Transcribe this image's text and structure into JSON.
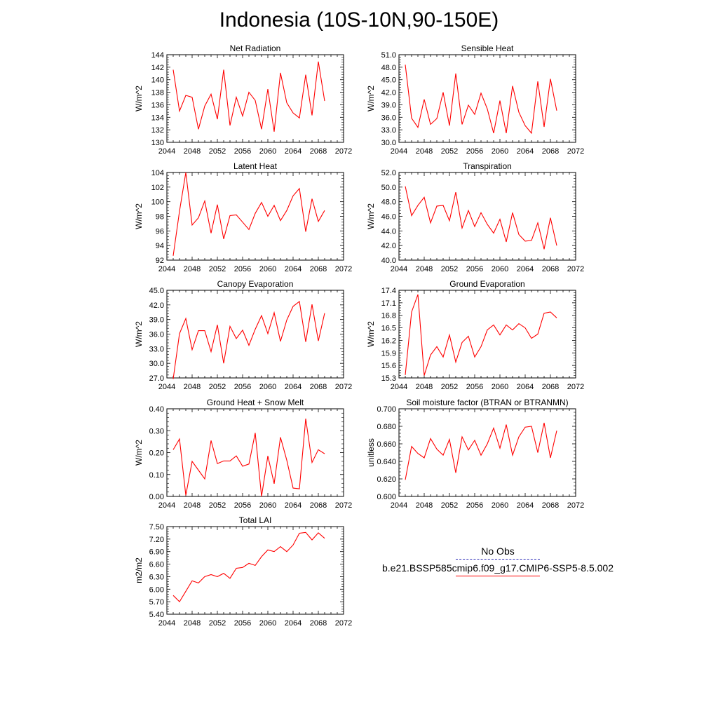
{
  "title": "Indonesia (10S-10N,90-150E)",
  "legend": {
    "obs_label": "No Obs",
    "model_label": "b.e21.BSSP585cmip6.f09_g17.CMIP6-SSP5-8.5.002",
    "model_color": "#ff0000",
    "obs_color": "#2a2ab8"
  },
  "chart_data": [
    {
      "type": "line",
      "title": "Net Radiation",
      "ylabel": "W/m^2",
      "xlim": [
        2044,
        2072
      ],
      "xticks": [
        2044,
        2048,
        2052,
        2056,
        2060,
        2064,
        2068,
        2072
      ],
      "ylim": [
        130,
        144
      ],
      "yticks": [
        "130",
        "132",
        "134",
        "136",
        "138",
        "140",
        "142",
        "144"
      ],
      "x": [
        2045,
        2046,
        2047,
        2048,
        2049,
        2050,
        2051,
        2052,
        2053,
        2054,
        2055,
        2056,
        2057,
        2058,
        2059,
        2060,
        2061,
        2062,
        2063,
        2064,
        2065,
        2066,
        2067,
        2068,
        2069
      ],
      "values": [
        141.6,
        135.0,
        137.5,
        137.2,
        132.1,
        135.8,
        137.7,
        133.7,
        141.6,
        132.7,
        137.2,
        134.2,
        138.0,
        136.7,
        132.1,
        138.5,
        131.7,
        141.1,
        136.3,
        134.7,
        133.9,
        140.8,
        134.3,
        142.9,
        136.6
      ]
    },
    {
      "type": "line",
      "title": "Sensible Heat",
      "ylabel": "W/m^2",
      "xlim": [
        2044,
        2072
      ],
      "xticks": [
        2044,
        2048,
        2052,
        2056,
        2060,
        2064,
        2068,
        2072
      ],
      "ylim": [
        30,
        51
      ],
      "yticks": [
        "30.0",
        "33.0",
        "36.0",
        "39.0",
        "42.0",
        "45.0",
        "48.0",
        "51.0"
      ],
      "x": [
        2045,
        2046,
        2047,
        2048,
        2049,
        2050,
        2051,
        2052,
        2053,
        2054,
        2055,
        2056,
        2057,
        2058,
        2059,
        2060,
        2061,
        2062,
        2063,
        2064,
        2065,
        2066,
        2067,
        2068,
        2069
      ],
      "values": [
        48.6,
        35.8,
        33.6,
        40.3,
        34.3,
        35.7,
        42.0,
        34.0,
        46.5,
        34.3,
        38.9,
        36.7,
        41.8,
        38.0,
        32.2,
        40.0,
        32.2,
        43.5,
        37.2,
        34.0,
        32.2,
        44.6,
        33.7,
        45.2,
        37.6
      ]
    },
    {
      "type": "line",
      "title": "Latent Heat",
      "ylabel": "W/m^2",
      "xlim": [
        2044,
        2072
      ],
      "xticks": [
        2044,
        2048,
        2052,
        2056,
        2060,
        2064,
        2068,
        2072
      ],
      "ylim": [
        92,
        104
      ],
      "yticks": [
        "92",
        "94",
        "96",
        "98",
        "100",
        "102",
        "104"
      ],
      "x": [
        2045,
        2046,
        2047,
        2048,
        2049,
        2050,
        2051,
        2052,
        2053,
        2054,
        2055,
        2056,
        2057,
        2058,
        2059,
        2060,
        2061,
        2062,
        2063,
        2064,
        2065,
        2066,
        2067,
        2068,
        2069
      ],
      "values": [
        92.6,
        98.7,
        104.0,
        96.8,
        97.8,
        100.1,
        95.7,
        99.6,
        94.9,
        98.1,
        98.2,
        97.2,
        96.2,
        98.4,
        99.9,
        98.0,
        99.5,
        97.4,
        98.8,
        100.8,
        101.8,
        95.9,
        100.4,
        97.3,
        98.8
      ]
    },
    {
      "type": "line",
      "title": "Transpiration",
      "ylabel": "W/m^2",
      "xlim": [
        2044,
        2072
      ],
      "xticks": [
        2044,
        2048,
        2052,
        2056,
        2060,
        2064,
        2068,
        2072
      ],
      "ylim": [
        40,
        52
      ],
      "yticks": [
        "40.0",
        "42.0",
        "44.0",
        "46.0",
        "48.0",
        "50.0",
        "52.0"
      ],
      "x": [
        2045,
        2046,
        2047,
        2048,
        2049,
        2050,
        2051,
        2052,
        2053,
        2054,
        2055,
        2056,
        2057,
        2058,
        2059,
        2060,
        2061,
        2062,
        2063,
        2064,
        2065,
        2066,
        2067,
        2068,
        2069
      ],
      "values": [
        50.1,
        46.1,
        47.5,
        48.6,
        45.1,
        47.4,
        47.5,
        45.4,
        49.3,
        44.4,
        46.8,
        44.6,
        46.5,
        44.9,
        43.7,
        45.6,
        42.5,
        46.5,
        43.5,
        42.6,
        42.7,
        45.1,
        41.5,
        45.8,
        42.0
      ]
    },
    {
      "type": "line",
      "title": "Canopy Evaporation",
      "ylabel": "W/m^2",
      "xlim": [
        2044,
        2072
      ],
      "xticks": [
        2044,
        2048,
        2052,
        2056,
        2060,
        2064,
        2068,
        2072
      ],
      "ylim": [
        27,
        45
      ],
      "yticks": [
        "27.0",
        "30.0",
        "33.0",
        "36.0",
        "39.0",
        "42.0",
        "45.0"
      ],
      "x": [
        2045,
        2046,
        2047,
        2048,
        2049,
        2050,
        2051,
        2052,
        2053,
        2054,
        2055,
        2056,
        2057,
        2058,
        2059,
        2060,
        2061,
        2062,
        2063,
        2064,
        2065,
        2066,
        2067,
        2068,
        2069
      ],
      "values": [
        26.8,
        36.1,
        39.2,
        32.8,
        36.7,
        36.7,
        32.4,
        37.9,
        30.0,
        37.6,
        35.1,
        36.8,
        33.7,
        37.0,
        39.8,
        36.1,
        40.4,
        34.5,
        38.9,
        41.7,
        42.7,
        34.4,
        42.1,
        34.6,
        40.3
      ]
    },
    {
      "type": "line",
      "title": "Ground Evaporation",
      "ylabel": "W/m^2",
      "xlim": [
        2044,
        2072
      ],
      "xticks": [
        2044,
        2048,
        2052,
        2056,
        2060,
        2064,
        2068,
        2072
      ],
      "ylim": [
        15.3,
        17.4
      ],
      "yticks": [
        "15.3",
        "15.6",
        "15.9",
        "16.2",
        "16.5",
        "16.8",
        "17.1",
        "17.4"
      ],
      "x": [
        2045,
        2046,
        2047,
        2048,
        2049,
        2050,
        2051,
        2052,
        2053,
        2054,
        2055,
        2056,
        2057,
        2058,
        2059,
        2060,
        2061,
        2062,
        2063,
        2064,
        2065,
        2066,
        2067,
        2068,
        2069
      ],
      "values": [
        15.37,
        16.88,
        17.3,
        15.36,
        15.85,
        16.05,
        15.8,
        16.33,
        15.68,
        16.15,
        16.3,
        15.8,
        16.05,
        16.45,
        16.57,
        16.33,
        16.57,
        16.45,
        16.6,
        16.5,
        16.25,
        16.35,
        16.85,
        16.88,
        16.74
      ]
    },
    {
      "type": "line",
      "title": "Ground Heat + Snow Melt",
      "ylabel": "W/m^2",
      "xlim": [
        2044,
        2072
      ],
      "xticks": [
        2044,
        2048,
        2052,
        2056,
        2060,
        2064,
        2068,
        2072
      ],
      "ylim": [
        0,
        0.4
      ],
      "yticks": [
        "0.00",
        "0.10",
        "0.20",
        "0.30",
        "0.40"
      ],
      "x": [
        2045,
        2046,
        2047,
        2048,
        2049,
        2050,
        2051,
        2052,
        2053,
        2054,
        2055,
        2056,
        2057,
        2058,
        2059,
        2060,
        2061,
        2062,
        2063,
        2064,
        2065,
        2066,
        2067,
        2068,
        2069
      ],
      "values": [
        0.213,
        0.262,
        0.005,
        0.16,
        0.12,
        0.08,
        0.255,
        0.15,
        0.162,
        0.162,
        0.185,
        0.138,
        0.148,
        0.29,
        0.0,
        0.185,
        0.058,
        0.27,
        0.165,
        0.038,
        0.035,
        0.355,
        0.155,
        0.213,
        0.195
      ]
    },
    {
      "type": "line",
      "title": "Soil moisture factor (BTRAN or BTRANMN)",
      "ylabel": "unitless",
      "xlim": [
        2044,
        2072
      ],
      "xticks": [
        2044,
        2048,
        2052,
        2056,
        2060,
        2064,
        2068,
        2072
      ],
      "ylim": [
        0.6,
        0.7
      ],
      "yticks": [
        "0.600",
        "0.620",
        "0.640",
        "0.660",
        "0.680",
        "0.700"
      ],
      "x": [
        2045,
        2046,
        2047,
        2048,
        2049,
        2050,
        2051,
        2052,
        2053,
        2054,
        2055,
        2056,
        2057,
        2058,
        2059,
        2060,
        2061,
        2062,
        2063,
        2064,
        2065,
        2066,
        2067,
        2068,
        2069
      ],
      "values": [
        0.619,
        0.657,
        0.649,
        0.644,
        0.666,
        0.654,
        0.647,
        0.665,
        0.627,
        0.668,
        0.653,
        0.664,
        0.647,
        0.66,
        0.678,
        0.655,
        0.682,
        0.647,
        0.668,
        0.679,
        0.68,
        0.65,
        0.684,
        0.644,
        0.675
      ]
    },
    {
      "type": "line",
      "title": "Total LAI",
      "ylabel": "m2/m2",
      "xlim": [
        2044,
        2072
      ],
      "xticks": [
        2044,
        2048,
        2052,
        2056,
        2060,
        2064,
        2068,
        2072
      ],
      "ylim": [
        5.4,
        7.5
      ],
      "yticks": [
        "5.40",
        "5.70",
        "6.00",
        "6.30",
        "6.60",
        "6.90",
        "7.20",
        "7.50"
      ],
      "x": [
        2045,
        2046,
        2047,
        2048,
        2049,
        2050,
        2051,
        2052,
        2053,
        2054,
        2055,
        2056,
        2057,
        2058,
        2059,
        2060,
        2061,
        2062,
        2063,
        2064,
        2065,
        2066,
        2067,
        2068,
        2069
      ],
      "values": [
        5.85,
        5.7,
        5.95,
        6.2,
        6.15,
        6.3,
        6.35,
        6.3,
        6.38,
        6.26,
        6.5,
        6.52,
        6.62,
        6.57,
        6.78,
        6.94,
        6.9,
        7.02,
        6.9,
        7.06,
        7.34,
        7.36,
        7.18,
        7.35,
        7.22
      ]
    }
  ]
}
